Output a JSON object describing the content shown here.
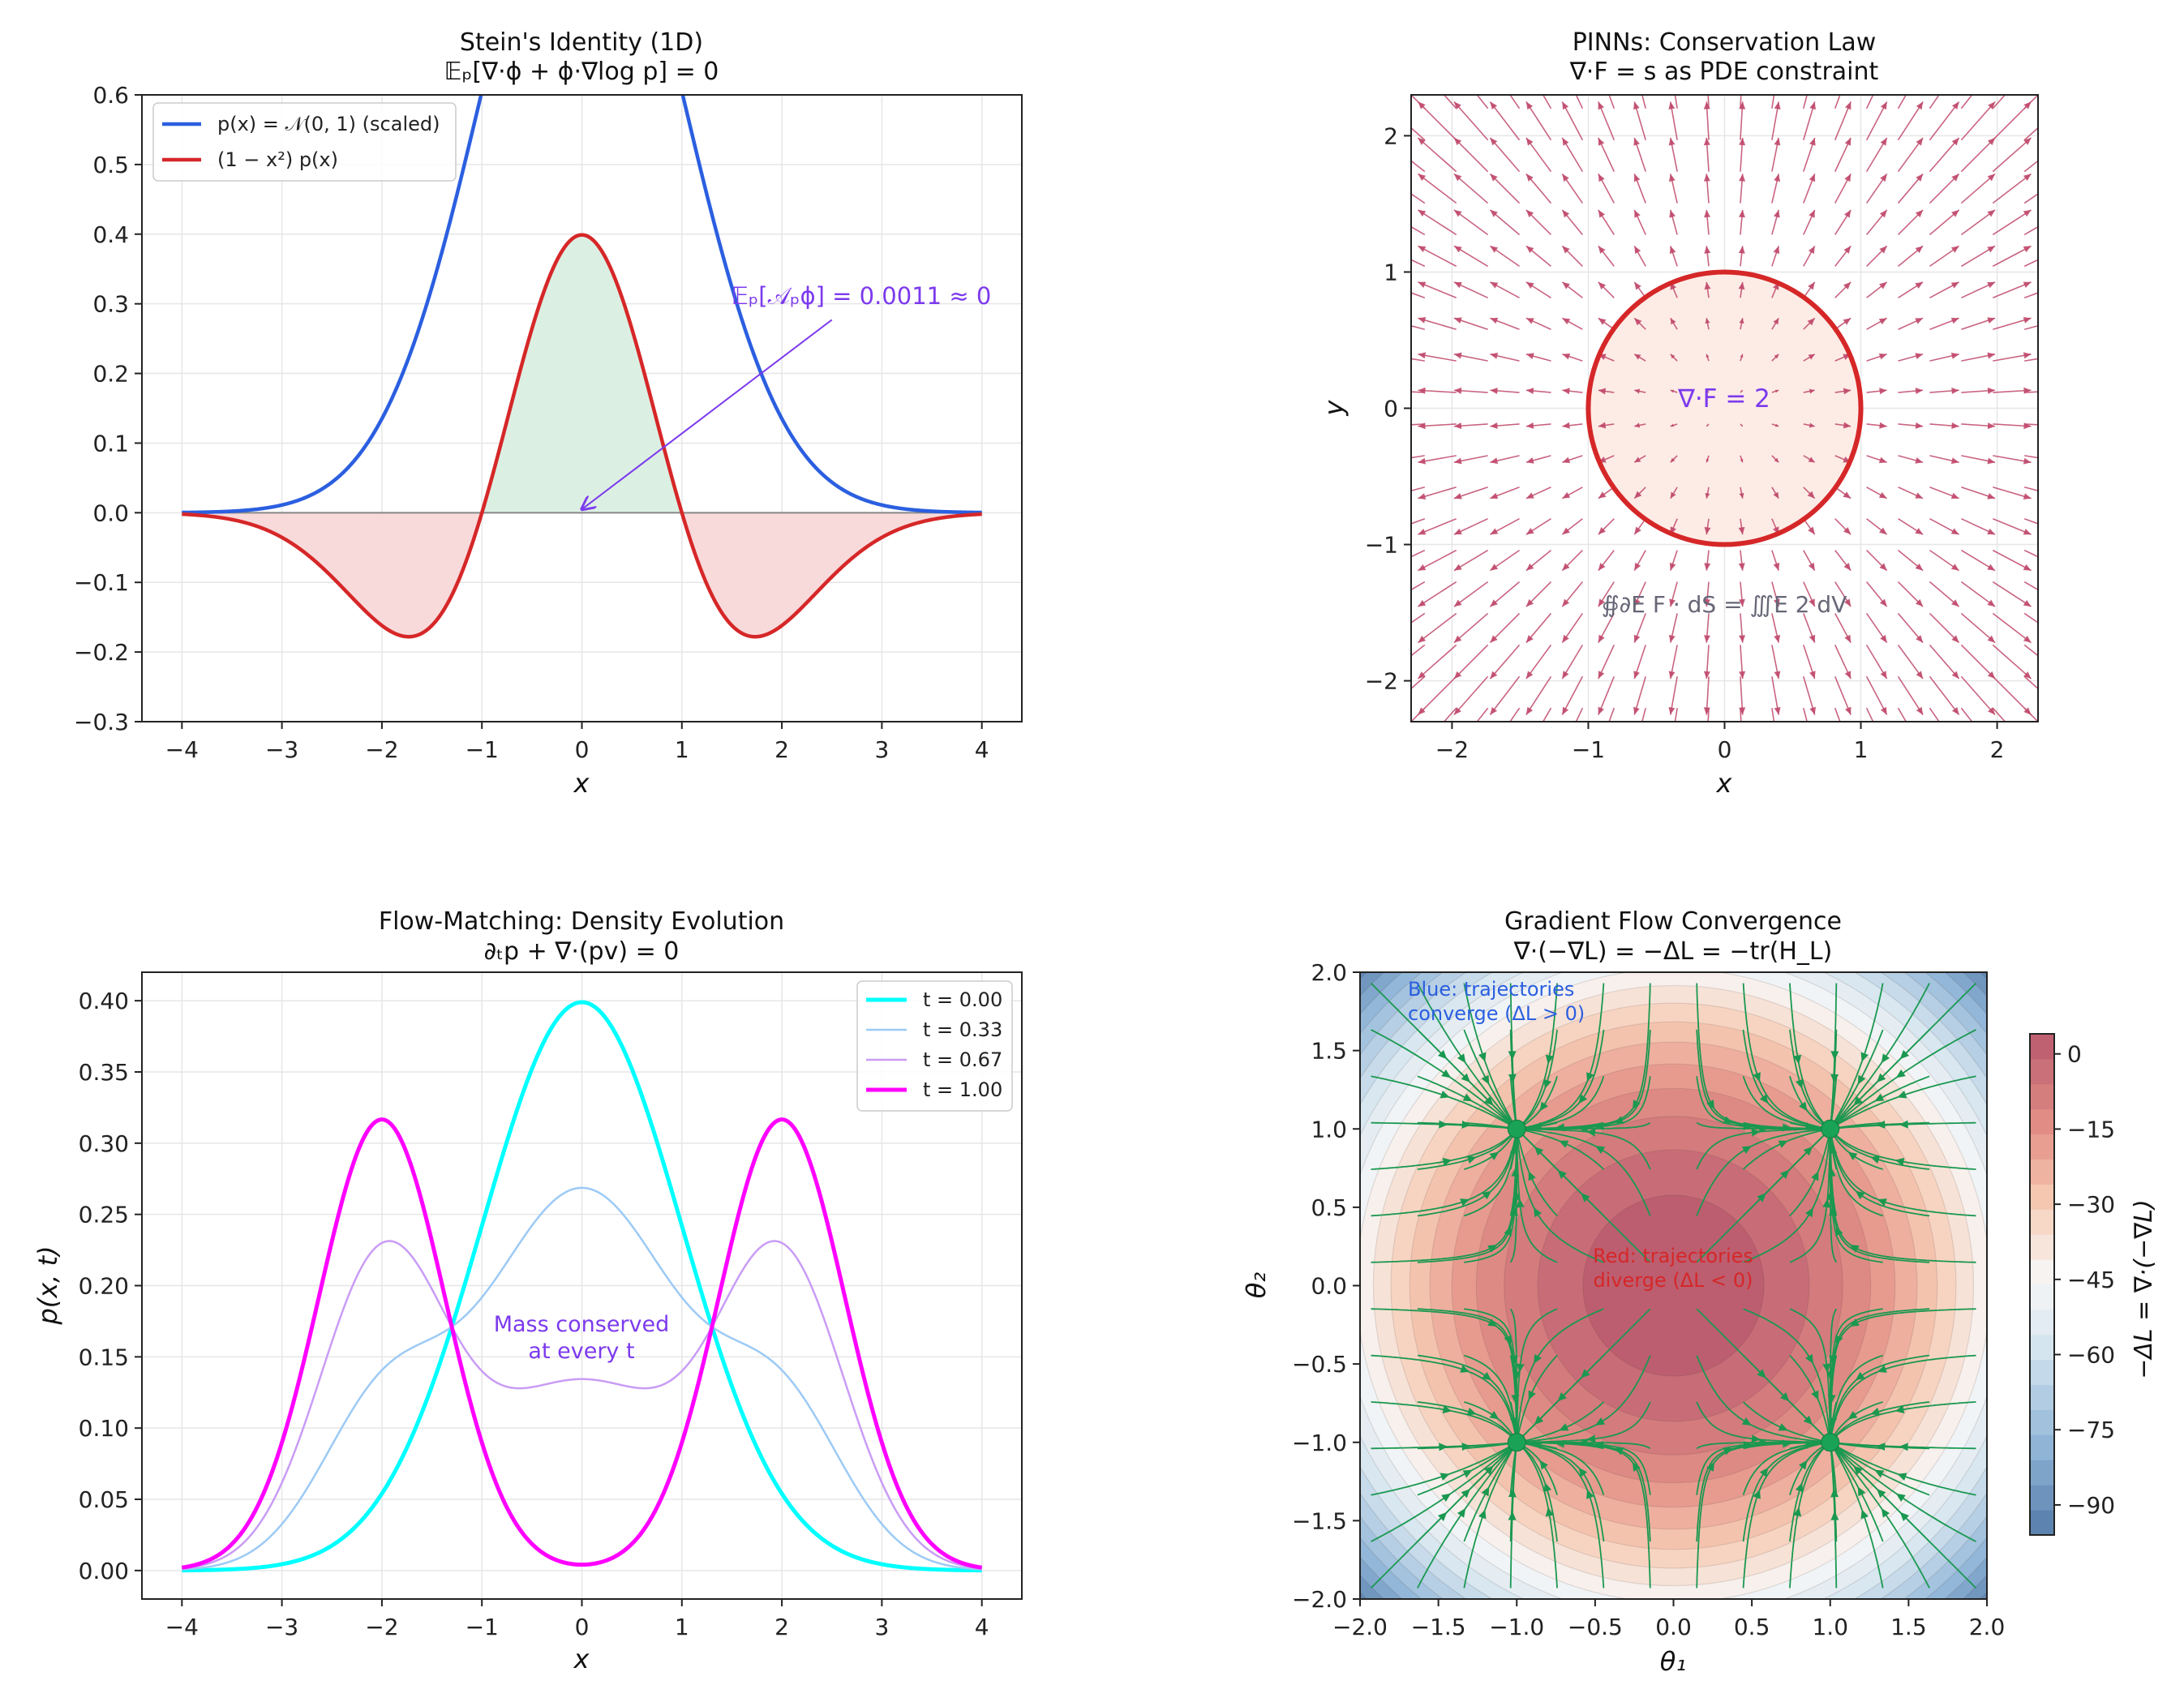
{
  "colors": {
    "blue": "#2b5fe0",
    "red": "#d62728",
    "green_fill": "#dcefe3",
    "red_fill": "#f8dadb",
    "purple": "#7c3aed",
    "quiver": "#c0486a",
    "cyan": "#00ffff",
    "lightblue": "#9ccaf5",
    "lavender": "#c99cf5",
    "magenta": "#ff00ff",
    "stream": "#1a9850",
    "grid": "#e6e6e6"
  },
  "chart_data": [
    {
      "id": "stein",
      "type": "line",
      "title": "Stein's Identity (1D)",
      "subtitle": "𝔼ₚ[∇·ϕ + ϕ·∇log p] = 0",
      "xlabel": "x",
      "ylabel": "",
      "xlim": [
        -4.4,
        4.4
      ],
      "ylim": [
        -0.3,
        0.6
      ],
      "xticks": [
        -4,
        -3,
        -2,
        -1,
        0,
        1,
        2,
        3,
        4
      ],
      "yticks": [
        -0.3,
        -0.2,
        -0.1,
        0.0,
        0.1,
        0.2,
        0.3,
        0.4,
        0.5,
        0.6
      ],
      "ytick_labels": [
        "−0.3",
        "−0.2",
        "−0.1",
        "0.0",
        "0.1",
        "0.2",
        "0.3",
        "0.4",
        "0.5",
        "0.6"
      ],
      "xtick_labels": [
        "−4",
        "−3",
        "−2",
        "−1",
        "0",
        "1",
        "2",
        "3",
        "4"
      ],
      "series": [
        {
          "name": "p(x) = 𝒩(0, 1) (scaled)",
          "formula": "scaled_gaussian",
          "scale": 2.5,
          "x_range": [
            -4,
            4
          ]
        },
        {
          "name": "(1 − x²) p(x)",
          "formula": "stein_integrand",
          "x_range": [
            -4,
            4
          ]
        }
      ],
      "annotation": {
        "text": "𝔼ₚ[𝒜ₚϕ] = 0.0011 ≈ 0",
        "x": 2.0,
        "y": 0.31,
        "arrow_to": [
          0.0,
          0.005
        ]
      },
      "legend_loc": "upper-left"
    },
    {
      "id": "pinns",
      "type": "quiver",
      "title": "PINNs: Conservation Law",
      "subtitle": "∇·F = s as PDE constraint",
      "xlabel": "x",
      "ylabel": "y",
      "xlim": [
        -2.3,
        2.3
      ],
      "ylim": [
        -2.3,
        2.3
      ],
      "xticks": [
        -2,
        -1,
        0,
        1,
        2
      ],
      "yticks": [
        -2,
        -1,
        0,
        1,
        2
      ],
      "xtick_labels": [
        "−2",
        "−1",
        "0",
        "1",
        "2"
      ],
      "ytick_labels": [
        "−2",
        "−1",
        "0",
        "1",
        "2"
      ],
      "field": "F = (x, y)",
      "grid_n": 20,
      "circle_radius": 1.0,
      "inside_label": "∇·F = 2",
      "bottom_label": "∯∂E F · dS = ∭E 2 dV"
    },
    {
      "id": "flow",
      "type": "line",
      "title": "Flow-Matching: Density Evolution",
      "subtitle": "∂ₜp + ∇·(pv) = 0",
      "xlabel": "x",
      "ylabel": "p(x, t)",
      "xlim": [
        -4.4,
        4.4
      ],
      "ylim": [
        -0.02,
        0.42
      ],
      "xticks": [
        -4,
        -3,
        -2,
        -1,
        0,
        1,
        2,
        3,
        4
      ],
      "xtick_labels": [
        "−4",
        "−3",
        "−2",
        "−1",
        "0",
        "1",
        "2",
        "3",
        "4"
      ],
      "yticks": [
        0.0,
        0.05,
        0.1,
        0.15,
        0.2,
        0.25,
        0.3,
        0.35,
        0.4
      ],
      "ytick_labels": [
        "0.00",
        "0.05",
        "0.10",
        "0.15",
        "0.20",
        "0.25",
        "0.30",
        "0.35",
        "0.40"
      ],
      "series": [
        {
          "name": "t = 0.00",
          "t": 0.0
        },
        {
          "name": "t = 0.33",
          "t": 0.33
        },
        {
          "name": "t = 0.67",
          "t": 0.67
        },
        {
          "name": "t = 1.00",
          "t": 1.0
        }
      ],
      "mixture": {
        "source": "N(0,1)",
        "target": "0.5·N(−2,0.63²) + 0.5·N(2,0.63²)"
      },
      "annotation": {
        "lines": [
          "Mass conserved",
          "at every t"
        ],
        "x": 0.0,
        "y": 0.165
      },
      "legend_loc": "upper-right"
    },
    {
      "id": "gradflow",
      "type": "heatmap",
      "title": "Gradient Flow Convergence",
      "subtitle": "∇·(−∇L) = −ΔL = −tr(H_L)",
      "xlabel": "θ₁",
      "ylabel": "θ₂",
      "xlim": [
        -2.0,
        2.0
      ],
      "ylim": [
        -2.0,
        2.0
      ],
      "xticks": [
        -2.0,
        -1.5,
        -1.0,
        -0.5,
        0.0,
        0.5,
        1.0,
        1.5,
        2.0
      ],
      "xtick_labels": [
        "−2.0",
        "−1.5",
        "−1.0",
        "−0.5",
        "0.0",
        "0.5",
        "1.0",
        "1.5",
        "2.0"
      ],
      "yticks": [
        -2.0,
        -1.5,
        -1.0,
        -0.5,
        0.0,
        0.5,
        1.0,
        1.5,
        2.0
      ],
      "ytick_labels": [
        "−2.0",
        "−1.5",
        "−1.0",
        "−0.5",
        "0.0",
        "0.5",
        "1.0",
        "1.5",
        "2.0"
      ],
      "field_formula": "−ΔL = 4 − 12(θ₁² + θ₂²)",
      "colorbar": {
        "label": "−ΔL = ∇·(−∇L)",
        "range": [
          -96,
          4
        ],
        "ticks": [
          0,
          -15,
          -30,
          -45,
          -60,
          -75,
          -90
        ],
        "tick_labels": [
          "0",
          "−15",
          "−30",
          "−45",
          "−60",
          "−75",
          "−90"
        ]
      },
      "minima": [
        [
          -1,
          1
        ],
        [
          1,
          1
        ],
        [
          -1,
          -1
        ],
        [
          1,
          -1
        ]
      ],
      "text_blue": [
        "Blue: trajectories",
        "converge (ΔL > 0)"
      ],
      "text_red": [
        "Red: trajectories",
        "diverge (ΔL < 0)"
      ]
    }
  ]
}
